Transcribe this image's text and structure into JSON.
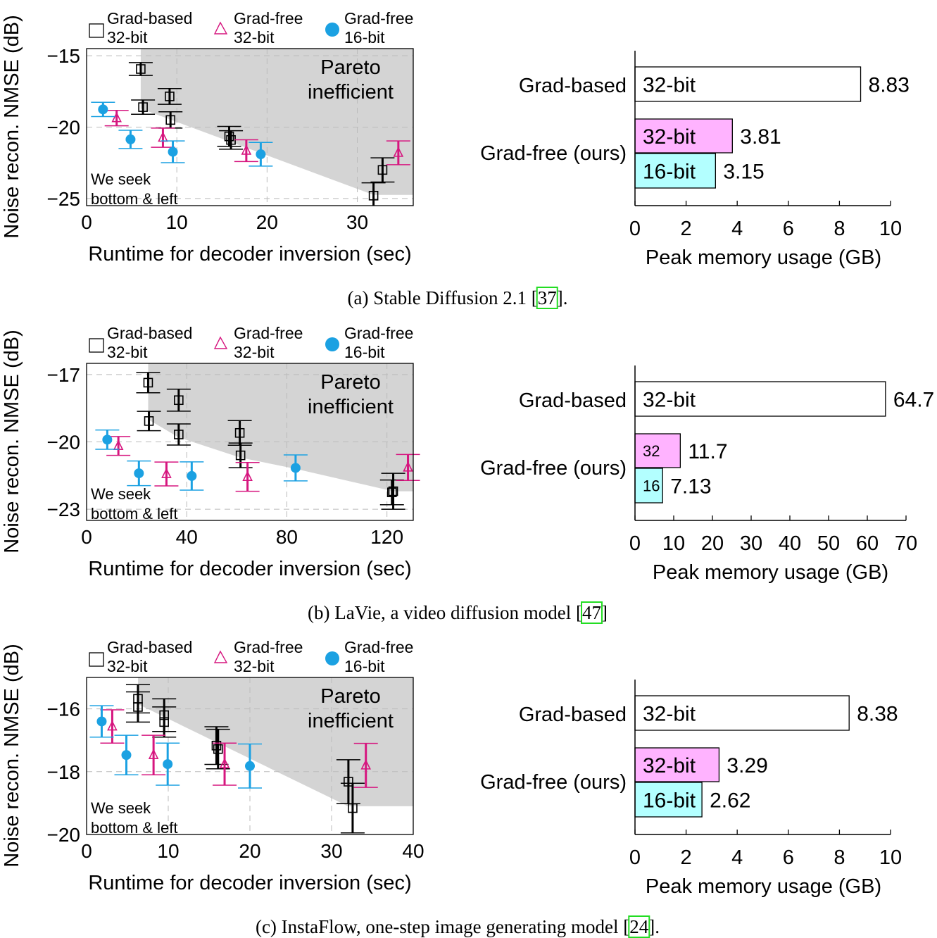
{
  "colors": {
    "grad_based": "#000000",
    "grad_free_32": "#d6167f",
    "grad_free_16": "#1ba1e2",
    "shade": "#d4d4d4",
    "bar_32": "#ffb3ff",
    "bar_16": "#b3ffff",
    "ref_box": "#22dd22"
  },
  "legend": [
    {
      "line1": "Grad-based",
      "line2": "32-bit",
      "marker": "square-icon"
    },
    {
      "line1": "Grad-free",
      "line2": "32-bit",
      "marker": "triangle-icon"
    },
    {
      "line1": "Grad-free",
      "line2": "16-bit",
      "marker": "circle-icon"
    }
  ],
  "captions": [
    {
      "prefix": "(a) Stable Diffusion 2.1 [",
      "ref": "37",
      "suffix": "]."
    },
    {
      "prefix": "(b) LaVie, a video diffusion model [",
      "ref": "47",
      "suffix": "]"
    },
    {
      "prefix": "(c) InstaFlow, one-step image generating model [",
      "ref": "24",
      "suffix": "]."
    }
  ],
  "chart_data": [
    {
      "type": "scatter",
      "panel": "a",
      "xlabel": "Runtime for decoder inversion (sec)",
      "ylabel": "Noise recon. NMSE (dB)",
      "xlim": [
        0,
        36.2
      ],
      "ylim": [
        -25.5,
        -14.5
      ],
      "xticks": [
        0,
        10,
        20,
        30
      ],
      "xtick_labels": [
        "0",
        "10",
        "20",
        "30"
      ],
      "yticks": [
        -15,
        -20,
        -25
      ],
      "ytick_labels": [
        "−15",
        "−20",
        "−25"
      ],
      "grid": true,
      "annotations": {
        "region": [
          "Pareto",
          "inefficient"
        ],
        "hint": [
          "We seek",
          "bottom & left"
        ]
      },
      "pareto_inefficient_region": [
        [
          6.0,
          -14.5
        ],
        [
          6.0,
          -18.7
        ],
        [
          31.8,
          -24.75
        ],
        [
          36.2,
          -24.75
        ],
        [
          36.2,
          -14.5
        ]
      ],
      "series": [
        {
          "name": "Grad-based 32-bit",
          "marker": "square",
          "points": [
            [
              6.0,
              -15.93,
              0.45
            ],
            [
              6.25,
              -18.6,
              0.5
            ],
            [
              9.2,
              -17.85,
              0.55
            ],
            [
              9.3,
              -19.5,
              0.57
            ],
            [
              15.8,
              -20.65,
              0.7
            ],
            [
              16.0,
              -20.9,
              0.65
            ],
            [
              32.8,
              -23.0,
              0.85
            ],
            [
              31.8,
              -24.8,
              0.9
            ]
          ]
        },
        {
          "name": "Grad-free 32-bit",
          "marker": "triangle",
          "points": [
            [
              3.33,
              -19.37,
              0.54
            ],
            [
              8.46,
              -20.74,
              0.67
            ],
            [
              17.7,
              -21.65,
              0.76
            ],
            [
              34.55,
              -21.8,
              0.83
            ]
          ]
        },
        {
          "name": "Grad-free 16-bit",
          "marker": "circle",
          "points": [
            [
              1.82,
              -18.76,
              0.5
            ],
            [
              4.87,
              -20.86,
              0.64
            ],
            [
              9.56,
              -21.73,
              0.76
            ],
            [
              19.3,
              -21.9,
              0.83
            ]
          ]
        }
      ]
    },
    {
      "type": "bar",
      "panel": "a",
      "orientation": "horizontal",
      "xlabel": "Peak memory usage (GB)",
      "xlim": [
        0,
        10
      ],
      "xticks": [
        0,
        2,
        4,
        6,
        8,
        10
      ],
      "xtick_labels": [
        "0",
        "2",
        "4",
        "6",
        "8",
        "10"
      ],
      "groups": [
        "Grad-based",
        "Grad-free (ours)"
      ],
      "bars": [
        {
          "group": "Grad-based",
          "label": "32-bit",
          "value": 8.83,
          "value_label": "8.83",
          "fill": "#ffffff"
        },
        {
          "group": "Grad-free (ours)",
          "label": "32-bit",
          "value": 3.81,
          "value_label": "3.81",
          "fill": "#ffb3ff"
        },
        {
          "group": "Grad-free (ours)",
          "label": "16-bit",
          "value": 3.15,
          "value_label": "3.15",
          "fill": "#b3ffff"
        }
      ]
    },
    {
      "type": "scatter",
      "panel": "b",
      "xlabel": "Runtime for decoder inversion (sec)",
      "ylabel": "Noise recon. NMSE (dB)",
      "xlim": [
        0,
        130.5
      ],
      "ylim": [
        -23.5,
        -16.5
      ],
      "xticks": [
        0,
        40,
        80,
        120
      ],
      "xtick_labels": [
        "0",
        "40",
        "80",
        "120"
      ],
      "yticks": [
        -17,
        -20,
        -23
      ],
      "ytick_labels": [
        "−17",
        "−20",
        "−23"
      ],
      "grid": true,
      "annotations": {
        "region": [
          "Pareto",
          "inefficient"
        ],
        "hint": [
          "We seek",
          "bottom & left"
        ]
      },
      "pareto_inefficient_region": [
        [
          24.6,
          -16.5
        ],
        [
          24.6,
          -19.0
        ],
        [
          36.8,
          -19.8
        ],
        [
          61.4,
          -20.7
        ],
        [
          83.5,
          -21.2
        ],
        [
          122.5,
          -22.2
        ],
        [
          130.5,
          -22.2
        ],
        [
          130.5,
          -16.5
        ]
      ],
      "series": [
        {
          "name": "Grad-based 32-bit",
          "marker": "square",
          "points": [
            [
              24.6,
              -17.36,
              0.45
            ],
            [
              24.9,
              -19.07,
              0.43
            ],
            [
              36.8,
              -18.14,
              0.49
            ],
            [
              36.8,
              -19.67,
              0.47
            ],
            [
              61.2,
              -19.6,
              0.55
            ],
            [
              61.5,
              -20.6,
              0.55
            ],
            [
              122.5,
              -22.2,
              0.8
            ],
            [
              122.0,
              -22.25,
              0.55
            ]
          ]
        },
        {
          "name": "Grad-free 32-bit",
          "marker": "triangle",
          "points": [
            [
              12.7,
              -20.18,
              0.42
            ],
            [
              31.9,
              -21.43,
              0.53
            ],
            [
              64.3,
              -21.56,
              0.64
            ],
            [
              128.4,
              -21.14,
              0.58
            ]
          ]
        },
        {
          "name": "Grad-free 16-bit",
          "marker": "circle",
          "points": [
            [
              8.26,
              -19.9,
              0.43
            ],
            [
              20.9,
              -21.4,
              0.55
            ],
            [
              42.0,
              -21.52,
              0.63
            ],
            [
              83.5,
              -21.16,
              0.58
            ]
          ]
        }
      ]
    },
    {
      "type": "bar",
      "panel": "b",
      "orientation": "horizontal",
      "xlabel": "Peak memory usage (GB)",
      "xlim": [
        0,
        70
      ],
      "xticks": [
        0,
        10,
        20,
        30,
        40,
        50,
        60,
        70
      ],
      "xtick_labels": [
        "0",
        "10",
        "20",
        "30",
        "40",
        "50",
        "60",
        "70"
      ],
      "groups": [
        "Grad-based",
        "Grad-free (ours)"
      ],
      "bars": [
        {
          "group": "Grad-based",
          "label": "32-bit",
          "value": 64.7,
          "value_label": "64.7",
          "fill": "#ffffff"
        },
        {
          "group": "Grad-free (ours)",
          "label": "32",
          "value": 11.7,
          "value_label": "11.7",
          "fill": "#ffb3ff"
        },
        {
          "group": "Grad-free (ours)",
          "label": "16",
          "value": 7.13,
          "value_label": "7.13",
          "fill": "#b3ffff"
        }
      ]
    },
    {
      "type": "scatter",
      "panel": "c",
      "xlabel": "Runtime for decoder inversion (sec)",
      "ylabel": "Noise recon. NMSE (dB)",
      "xlim": [
        0,
        40
      ],
      "ylim": [
        -20,
        -15
      ],
      "xticks": [
        0,
        10,
        20,
        30,
        40
      ],
      "xtick_labels": [
        "0",
        "10",
        "20",
        "30",
        "40"
      ],
      "yticks": [
        -16,
        -18,
        -20
      ],
      "ytick_labels": [
        "−16",
        "−18",
        "−20"
      ],
      "grid": true,
      "annotations": {
        "region": [
          "Pareto",
          "inefficient"
        ],
        "hint": [
          "We seek",
          "bottom & left"
        ]
      },
      "pareto_inefficient_region": [
        [
          6.3,
          -15
        ],
        [
          6.3,
          -15.85
        ],
        [
          32.0,
          -19.1
        ],
        [
          40,
          -19.1
        ],
        [
          40,
          -15
        ]
      ],
      "series": [
        {
          "name": "Grad-based 32-bit",
          "marker": "square",
          "points": [
            [
              6.29,
              -15.68,
              0.45
            ],
            [
              6.29,
              -15.94,
              0.48
            ],
            [
              9.5,
              -16.2,
              0.52
            ],
            [
              9.5,
              -16.42,
              0.48
            ],
            [
              15.9,
              -17.17,
              0.6
            ],
            [
              16.1,
              -17.28,
              0.63
            ],
            [
              32.06,
              -18.32,
              0.7
            ],
            [
              32.58,
              -19.16,
              0.79
            ]
          ]
        },
        {
          "name": "Grad-free 32-bit",
          "marker": "triangle",
          "points": [
            [
              3.14,
              -16.56,
              0.53
            ],
            [
              8.2,
              -17.47,
              0.63
            ],
            [
              16.9,
              -17.76,
              0.67
            ],
            [
              34.2,
              -17.8,
              0.7
            ]
          ]
        },
        {
          "name": "Grad-free 16-bit",
          "marker": "circle",
          "points": [
            [
              1.85,
              -16.4,
              0.5
            ],
            [
              4.87,
              -17.47,
              0.63
            ],
            [
              9.93,
              -17.76,
              0.67
            ],
            [
              20.0,
              -17.82,
              0.7
            ]
          ]
        }
      ]
    },
    {
      "type": "bar",
      "panel": "c",
      "orientation": "horizontal",
      "xlabel": "Peak memory usage (GB)",
      "xlim": [
        0,
        10
      ],
      "xticks": [
        0,
        2,
        4,
        6,
        8,
        10
      ],
      "xtick_labels": [
        "0",
        "2",
        "4",
        "6",
        "8",
        "10"
      ],
      "groups": [
        "Grad-based",
        "Grad-free (ours)"
      ],
      "bars": [
        {
          "group": "Grad-based",
          "label": "32-bit",
          "value": 8.38,
          "value_label": "8.38",
          "fill": "#ffffff"
        },
        {
          "group": "Grad-free (ours)",
          "label": "32-bit",
          "value": 3.29,
          "value_label": "3.29",
          "fill": "#ffb3ff"
        },
        {
          "group": "Grad-free (ours)",
          "label": "16-bit",
          "value": 2.62,
          "value_label": "2.62",
          "fill": "#b3ffff"
        }
      ]
    }
  ]
}
